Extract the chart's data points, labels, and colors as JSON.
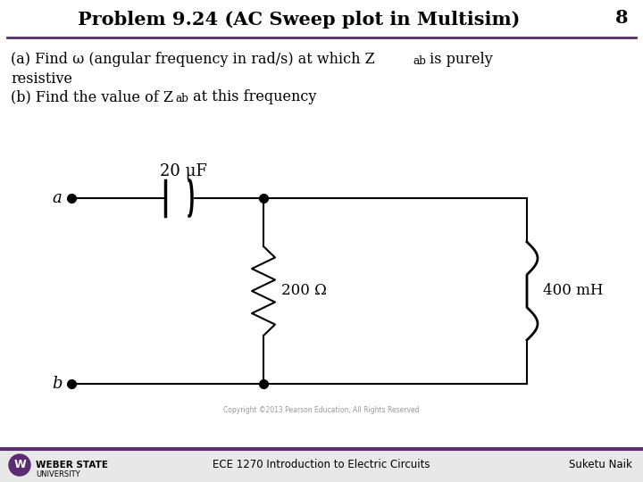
{
  "title": "Problem 9.24 (AC Sweep plot in Multisim)",
  "title_number": "8",
  "title_color": "#000000",
  "purple_line_color": "#5b2c6f",
  "cap_label": "20 μF",
  "res_label": "200 Ω",
  "ind_label": "400 mH",
  "node_a_label": "a",
  "node_b_label": "b",
  "footer_left": "WEBER STATE UNIVERSITY",
  "footer_center": "ECE 1270 Introduction to Electric Circuits",
  "footer_right": "Suketu Naik",
  "footer_logo_color": "#5b2c6f",
  "copyright_text": "Copyright ©2013 Pearson Education, All Rights Reserved",
  "bg_color": "#ffffff",
  "footer_bg_color": "#e8e8e8",
  "circuit_color": "#000000",
  "title_fontsize": 15,
  "body_fontsize": 11.5,
  "circuit_lw": 1.5
}
